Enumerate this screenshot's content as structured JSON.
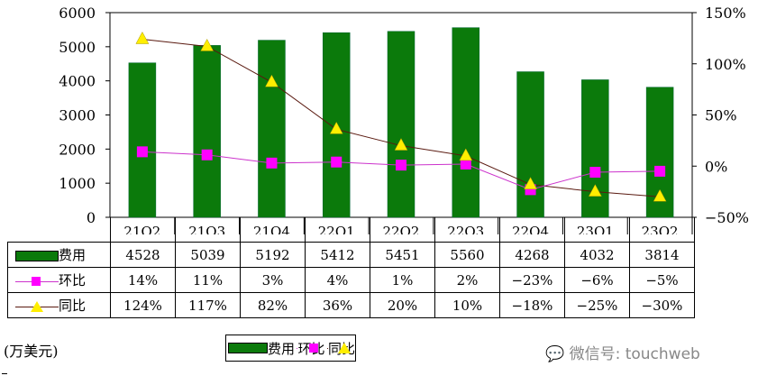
{
  "chart_data": {
    "type": "bar",
    "categories": [
      "21Q2",
      "21Q3",
      "21Q4",
      "22Q1",
      "22Q2",
      "22Q3",
      "22Q4",
      "23Q1",
      "23Q2"
    ],
    "series": [
      {
        "name": "费用",
        "type": "bar",
        "axis": "left",
        "values": [
          4528,
          5039,
          5192,
          5412,
          5451,
          5560,
          4268,
          4032,
          3814
        ],
        "labels": [
          "4528",
          "5039",
          "5192",
          "5412",
          "5451",
          "5560",
          "4268",
          "4032",
          "3814"
        ]
      },
      {
        "name": "环比",
        "type": "line",
        "axis": "right",
        "values": [
          14,
          11,
          3,
          4,
          1,
          2,
          -23,
          -6,
          -5
        ],
        "labels": [
          "14%",
          "11%",
          "3%",
          "4%",
          "1%",
          "2%",
          "−23%",
          "−6%",
          "−5%"
        ]
      },
      {
        "name": "同比",
        "type": "line",
        "axis": "right",
        "values": [
          124,
          117,
          82,
          36,
          20,
          10,
          -18,
          -25,
          -30
        ],
        "labels": [
          "124%",
          "117%",
          "82%",
          "36%",
          "20%",
          "10%",
          "−18%",
          "−25%",
          "−30%"
        ]
      }
    ],
    "ylim": [
      0,
      6000
    ],
    "yticks": [
      "0",
      "1000",
      "2000",
      "3000",
      "4000",
      "5000",
      "6000"
    ],
    "y2lim": [
      -50,
      150
    ],
    "y2ticks": [
      "−50%",
      "0%",
      "50%",
      "100%",
      "150%"
    ],
    "unit": "(万美元)",
    "legend": [
      "费用",
      "环比",
      "同比"
    ],
    "legend_position": "bottom",
    "colors": {
      "bar": "#0b7a0b",
      "qoq": "#ff00ff",
      "qoq_line": "#cc33cc",
      "yoy": "#ffee00",
      "yoy_line": "#5a1a10"
    }
  },
  "watermark": "微信号: touchweb"
}
